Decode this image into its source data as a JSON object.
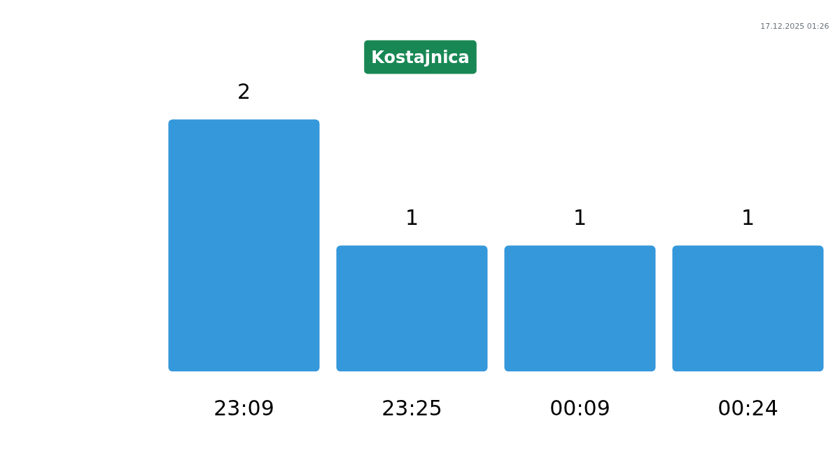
{
  "chart_data": {
    "type": "bar",
    "title": "Kostajnica",
    "annotations": [
      "17.12.2025 01:26"
    ],
    "categories": [
      "23:09",
      "23:25",
      "00:09",
      "00:24"
    ],
    "values": [
      2,
      1,
      1,
      1
    ],
    "color": "#3598db",
    "data_labels": true,
    "tick_labels": "x",
    "grid": false
  }
}
